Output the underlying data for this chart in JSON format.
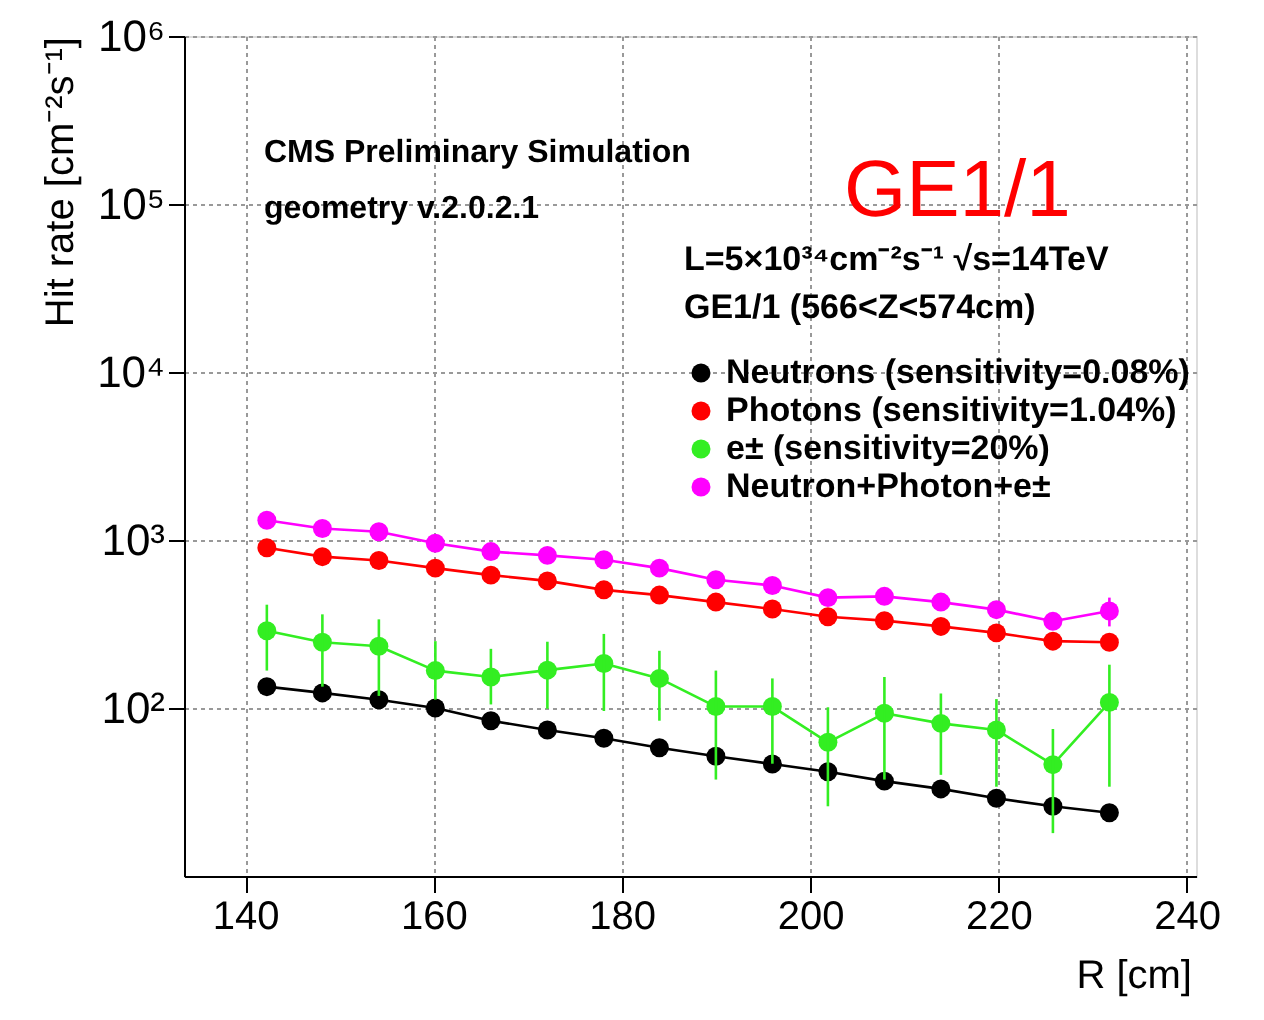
{
  "chart_data": {
    "type": "line",
    "xlabel": "R [cm]",
    "ylabel": "Hit rate [cm⁻²s⁻¹]",
    "x": [
      142.3,
      148.2,
      154.2,
      160.2,
      166.1,
      172.1,
      178.1,
      184.0,
      190.0,
      196.0,
      201.9,
      207.9,
      213.9,
      219.8,
      225.8,
      231.8
    ],
    "series": [
      {
        "name": "Neutrons (sensitivity=0.08%)",
        "color": "#000000",
        "values": [
          134,
          123,
          112,
          100,
          84,
          74,
          66,
          58,
          51.6,
          46.4,
          41.7,
          36.7,
          33,
          29,
          26,
          23.8
        ]
      },
      {
        "name": "Photons (sensitivity=1.04%)",
        "color": "#ff0000",
        "values": [
          900,
          796,
          755,
          680,
          618,
          571,
          505,
          470,
          427,
          388,
          349,
          331,
          306,
          280,
          250,
          246
        ]
      },
      {
        "name": "e± (sensitivity=20%)",
        "color": "#33ee22",
        "values": [
          288,
          246,
          233,
          167,
          153,
          168,
          184,
          150,
          102,
          102,
          62.5,
          93,
          81,
          74,
          46,
          108
        ],
        "errors": [
          [
            167,
            412
          ],
          [
            134,
            361
          ],
          [
            118,
            337
          ],
          [
            112,
            250
          ],
          [
            105,
            225
          ],
          [
            99,
            248
          ],
          [
            96,
            276
          ],
          [
            84,
            219
          ],
          [
            37.5,
            167
          ],
          [
            46.6,
            150
          ],
          [
            26,
            101
          ],
          [
            37.5,
            153
          ],
          [
            40,
            122
          ],
          [
            34,
            113
          ],
          [
            18,
            75
          ],
          [
            34,
            181
          ]
        ]
      },
      {
        "name": "Neutron+Photon+e±",
        "color": "#ff00ff",
        "values": [
          1311,
          1170,
          1120,
          956,
          853,
          810,
          763,
          680,
          580,
          536,
          454,
          462,
          427,
          385,
          328,
          378
        ],
        "errors": [
          null,
          null,
          null,
          null,
          null,
          null,
          null,
          null,
          null,
          null,
          null,
          null,
          null,
          null,
          null,
          [
            306,
            454
          ]
        ]
      }
    ],
    "xlim": [
      133.5,
      241
    ],
    "xticks": [
      140,
      160,
      180,
      200,
      220,
      240
    ],
    "ylim": [
      10,
      1000000
    ],
    "log": true,
    "yticks": [
      {
        "value": 100,
        "label": "10²"
      },
      {
        "value": 1000,
        "label": "10³"
      },
      {
        "value": 10000,
        "label": "10⁴"
      },
      {
        "value": 100000,
        "label": "10⁵"
      },
      {
        "value": 1000000,
        "label": "10⁶"
      }
    ],
    "annotations": [
      "CMS Preliminary Simulation",
      "geometry v.2.0.2.1",
      "GE1/1",
      "L=5×10³⁴cm⁻²s⁻¹   √s=14TeV",
      "GE1/1 (566<Z<574cm)"
    ],
    "grid": true,
    "legend": "top right",
    "marker": "circle",
    "line_style": "solid"
  }
}
